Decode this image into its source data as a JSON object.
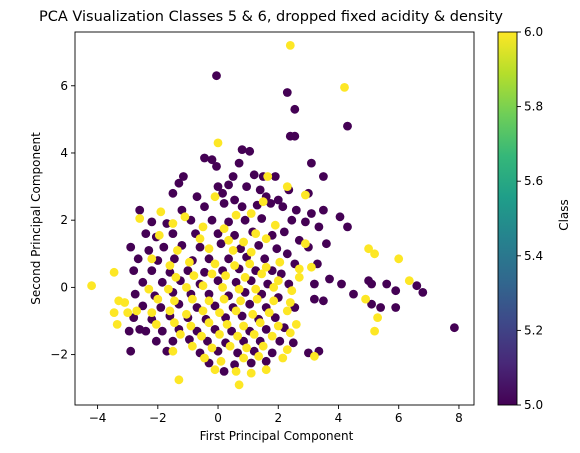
{
  "chart_data": {
    "type": "scatter",
    "title": "PCA Visualization Classes 5 & 6, dropped fixed acidity & density",
    "xlabel": "First Principal Component",
    "ylabel": "Second Principal Component",
    "xlim": [
      -4.75,
      8.5
    ],
    "ylim": [
      -3.5,
      7.6
    ],
    "xticks": [
      -4,
      -2,
      0,
      2,
      4,
      6,
      8
    ],
    "yticks": [
      -2,
      0,
      2,
      4,
      6
    ],
    "grid": false,
    "colorbar": {
      "label": "Class",
      "range": [
        5.0,
        6.0
      ],
      "ticks": [
        5.0,
        5.2,
        5.4,
        5.6,
        5.8,
        6.0
      ],
      "colormap": "viridis",
      "stops": [
        "#440154",
        "#482878",
        "#3e4989",
        "#31688e",
        "#26828e",
        "#1f9e89",
        "#35b779",
        "#6ece58",
        "#b5de2b",
        "#fde725"
      ]
    },
    "series": [
      {
        "class": 5,
        "color": "#440154",
        "points": [
          [
            -0.05,
            6.3
          ],
          [
            2.3,
            5.8
          ],
          [
            2.55,
            5.3
          ],
          [
            4.3,
            4.8
          ],
          [
            2.4,
            4.5
          ],
          [
            2.55,
            4.5
          ],
          [
            3.1,
            3.7
          ],
          [
            0.8,
            4.1
          ],
          [
            1.05,
            4.05
          ],
          [
            -0.45,
            3.85
          ],
          [
            -0.2,
            3.8
          ],
          [
            -0.05,
            3.6
          ],
          [
            0.7,
            3.7
          ],
          [
            0.5,
            3.3
          ],
          [
            1.2,
            3.35
          ],
          [
            1.5,
            3.3
          ],
          [
            1.9,
            3.3
          ],
          [
            3.5,
            3.3
          ],
          [
            -1.15,
            3.3
          ],
          [
            -1.3,
            3.1
          ],
          [
            0.0,
            3.0
          ],
          [
            0.35,
            3.05
          ],
          [
            0.95,
            3.0
          ],
          [
            1.4,
            2.9
          ],
          [
            2.35,
            2.9
          ],
          [
            3.0,
            2.8
          ],
          [
            -1.5,
            2.8
          ],
          [
            -0.7,
            2.7
          ],
          [
            0.15,
            2.8
          ],
          [
            0.55,
            2.6
          ],
          [
            1.6,
            2.7
          ],
          [
            2.0,
            2.6
          ],
          [
            -2.6,
            2.3
          ],
          [
            -1.2,
            2.3
          ],
          [
            -0.45,
            2.4
          ],
          [
            0.2,
            2.5
          ],
          [
            0.8,
            2.4
          ],
          [
            1.3,
            2.45
          ],
          [
            1.75,
            2.5
          ],
          [
            2.15,
            2.4
          ],
          [
            2.6,
            2.3
          ],
          [
            3.5,
            2.3
          ],
          [
            3.1,
            2.2
          ],
          [
            4.05,
            2.1
          ],
          [
            -2.2,
            1.95
          ],
          [
            -1.7,
            1.9
          ],
          [
            -0.9,
            2.0
          ],
          [
            -0.2,
            2.0
          ],
          [
            0.35,
            1.95
          ],
          [
            0.9,
            2.0
          ],
          [
            1.45,
            2.05
          ],
          [
            2.45,
            2.0
          ],
          [
            2.9,
            1.95
          ],
          [
            3.35,
            1.8
          ],
          [
            4.3,
            1.8
          ],
          [
            -2.4,
            1.6
          ],
          [
            -2.05,
            1.5
          ],
          [
            -1.5,
            1.6
          ],
          [
            -0.75,
            1.6
          ],
          [
            0.0,
            1.6
          ],
          [
            0.55,
            1.55
          ],
          [
            1.15,
            1.65
          ],
          [
            1.8,
            1.55
          ],
          [
            2.2,
            1.65
          ],
          [
            2.7,
            1.4
          ],
          [
            3.0,
            1.2
          ],
          [
            3.6,
            1.3
          ],
          [
            -2.9,
            1.2
          ],
          [
            -2.3,
            1.1
          ],
          [
            -1.8,
            1.2
          ],
          [
            -1.2,
            1.25
          ],
          [
            -0.6,
            1.2
          ],
          [
            0.1,
            1.3
          ],
          [
            0.75,
            1.15
          ],
          [
            1.35,
            1.25
          ],
          [
            1.95,
            1.15
          ],
          [
            2.3,
            1.0
          ],
          [
            -2.65,
            0.85
          ],
          [
            -2.0,
            0.8
          ],
          [
            -1.45,
            0.85
          ],
          [
            -0.85,
            0.8
          ],
          [
            -0.3,
            0.85
          ],
          [
            0.35,
            0.85
          ],
          [
            0.95,
            0.9
          ],
          [
            1.55,
            0.85
          ],
          [
            2.55,
            0.7
          ],
          [
            3.3,
            0.7
          ],
          [
            -2.8,
            0.5
          ],
          [
            -2.2,
            0.5
          ],
          [
            -1.6,
            0.45
          ],
          [
            -1.0,
            0.5
          ],
          [
            -0.45,
            0.45
          ],
          [
            0.15,
            0.5
          ],
          [
            0.7,
            0.55
          ],
          [
            1.25,
            0.5
          ],
          [
            1.8,
            0.5
          ],
          [
            2.1,
            0.4
          ],
          [
            -2.5,
            0.15
          ],
          [
            -1.85,
            0.15
          ],
          [
            -1.25,
            0.2
          ],
          [
            -0.6,
            0.1
          ],
          [
            0.0,
            0.2
          ],
          [
            0.6,
            0.15
          ],
          [
            1.1,
            0.2
          ],
          [
            1.65,
            0.1
          ],
          [
            2.35,
            0.1
          ],
          [
            3.2,
            0.1
          ],
          [
            3.7,
            0.25
          ],
          [
            4.1,
            0.1
          ],
          [
            5.0,
            0.2
          ],
          [
            5.1,
            0.1
          ],
          [
            5.6,
            0.1
          ],
          [
            5.9,
            -0.1
          ],
          [
            6.6,
            0.05
          ],
          [
            6.8,
            -0.15
          ],
          [
            4.5,
            -0.2
          ],
          [
            -2.75,
            -0.2
          ],
          [
            -2.1,
            -0.25
          ],
          [
            -1.5,
            -0.15
          ],
          [
            -0.9,
            -0.2
          ],
          [
            -0.3,
            -0.2
          ],
          [
            0.35,
            -0.25
          ],
          [
            0.9,
            -0.15
          ],
          [
            1.45,
            -0.2
          ],
          [
            2.0,
            -0.3
          ],
          [
            3.2,
            -0.35
          ],
          [
            3.5,
            -0.4
          ],
          [
            5.1,
            -0.5
          ],
          [
            5.4,
            -0.6
          ],
          [
            -2.5,
            -0.55
          ],
          [
            -1.9,
            -0.6
          ],
          [
            -1.3,
            -0.5
          ],
          [
            -0.7,
            -0.6
          ],
          [
            -0.1,
            -0.55
          ],
          [
            0.5,
            -0.6
          ],
          [
            1.05,
            -0.5
          ],
          [
            1.6,
            -0.6
          ],
          [
            2.55,
            -0.6
          ],
          [
            5.9,
            -0.6
          ],
          [
            -2.8,
            -0.9
          ],
          [
            -2.2,
            -0.95
          ],
          [
            -1.6,
            -0.85
          ],
          [
            -1.0,
            -0.9
          ],
          [
            -0.4,
            -0.95
          ],
          [
            0.25,
            -0.9
          ],
          [
            0.8,
            -0.85
          ],
          [
            1.35,
            -0.95
          ],
          [
            1.9,
            -0.9
          ],
          [
            -2.95,
            -1.3
          ],
          [
            -2.6,
            -1.25
          ],
          [
            -2.4,
            -1.3
          ],
          [
            -1.85,
            -1.3
          ],
          [
            -1.3,
            -1.25
          ],
          [
            -0.7,
            -1.3
          ],
          [
            -0.1,
            -1.25
          ],
          [
            0.45,
            -1.3
          ],
          [
            1.05,
            -1.3
          ],
          [
            1.6,
            -1.25
          ],
          [
            2.2,
            -1.2
          ],
          [
            -2.05,
            -1.6
          ],
          [
            -1.5,
            -1.6
          ],
          [
            -0.95,
            -1.55
          ],
          [
            -0.35,
            -1.6
          ],
          [
            0.25,
            -1.65
          ],
          [
            0.85,
            -1.6
          ],
          [
            1.4,
            -1.6
          ],
          [
            2.05,
            -1.6
          ],
          [
            2.5,
            -1.65
          ],
          [
            -2.9,
            -1.9
          ],
          [
            -1.7,
            -1.9
          ],
          [
            -0.6,
            -1.95
          ],
          [
            0.0,
            -1.9
          ],
          [
            0.65,
            -1.95
          ],
          [
            1.2,
            -1.9
          ],
          [
            1.8,
            -1.95
          ],
          [
            3.0,
            -1.95
          ],
          [
            3.35,
            -1.9
          ],
          [
            -0.3,
            -2.25
          ],
          [
            0.55,
            -2.3
          ],
          [
            1.1,
            -2.25
          ],
          [
            1.6,
            -2.2
          ],
          [
            0.2,
            -2.5
          ],
          [
            7.85,
            -1.2
          ]
        ]
      },
      {
        "class": 6,
        "color": "#fde725",
        "points": [
          [
            2.4,
            7.2
          ],
          [
            4.2,
            5.95
          ],
          [
            0.0,
            4.3
          ],
          [
            1.65,
            3.3
          ],
          [
            2.3,
            3.0
          ],
          [
            2.9,
            2.75
          ],
          [
            -0.1,
            2.7
          ],
          [
            1.5,
            2.55
          ],
          [
            -1.9,
            2.25
          ],
          [
            -1.1,
            2.1
          ],
          [
            0.6,
            2.15
          ],
          [
            1.1,
            2.2
          ],
          [
            -2.6,
            2.05
          ],
          [
            -1.5,
            1.9
          ],
          [
            -0.5,
            1.8
          ],
          [
            0.2,
            1.75
          ],
          [
            1.25,
            1.6
          ],
          [
            1.9,
            1.85
          ],
          [
            -1.95,
            1.55
          ],
          [
            -0.6,
            1.45
          ],
          [
            0.35,
            1.4
          ],
          [
            0.85,
            1.35
          ],
          [
            1.6,
            1.45
          ],
          [
            -1.35,
            1.1
          ],
          [
            -0.3,
            1.15
          ],
          [
            0.5,
            1.1
          ],
          [
            1.1,
            1.05
          ],
          [
            2.9,
            1.3
          ],
          [
            5.0,
            1.15
          ],
          [
            5.2,
            1.0
          ],
          [
            -2.2,
            0.85
          ],
          [
            -1.6,
            0.65
          ],
          [
            -0.95,
            0.75
          ],
          [
            -0.1,
            0.7
          ],
          [
            0.55,
            0.65
          ],
          [
            1.05,
            0.7
          ],
          [
            1.6,
            0.6
          ],
          [
            2.05,
            0.75
          ],
          [
            2.7,
            0.55
          ],
          [
            3.1,
            0.6
          ],
          [
            6.0,
            0.85
          ],
          [
            -3.45,
            0.45
          ],
          [
            -1.4,
            0.3
          ],
          [
            -0.8,
            0.35
          ],
          [
            -0.2,
            0.4
          ],
          [
            0.25,
            0.35
          ],
          [
            0.9,
            0.3
          ],
          [
            1.45,
            0.4
          ],
          [
            2.0,
            0.2
          ],
          [
            2.7,
            0.3
          ],
          [
            6.35,
            0.2
          ],
          [
            -4.2,
            0.05
          ],
          [
            -2.3,
            -0.05
          ],
          [
            -1.65,
            -0.05
          ],
          [
            -1.05,
            0.0
          ],
          [
            -0.5,
            0.05
          ],
          [
            0.15,
            0.0
          ],
          [
            0.7,
            -0.05
          ],
          [
            1.25,
            -0.05
          ],
          [
            1.85,
            0.0
          ],
          [
            2.45,
            -0.1
          ],
          [
            -3.3,
            -0.4
          ],
          [
            -3.1,
            -0.45
          ],
          [
            -2.0,
            -0.35
          ],
          [
            -1.45,
            -0.4
          ],
          [
            -0.85,
            -0.35
          ],
          [
            -0.3,
            -0.4
          ],
          [
            0.2,
            -0.35
          ],
          [
            0.75,
            -0.4
          ],
          [
            1.3,
            -0.35
          ],
          [
            1.85,
            -0.4
          ],
          [
            2.4,
            -0.45
          ],
          [
            4.9,
            -0.35
          ],
          [
            -3.45,
            -0.75
          ],
          [
            -3.0,
            -0.75
          ],
          [
            -2.7,
            -0.7
          ],
          [
            -2.2,
            -0.75
          ],
          [
            -1.6,
            -0.7
          ],
          [
            -1.05,
            -0.8
          ],
          [
            -0.5,
            -0.7
          ],
          [
            0.05,
            -0.75
          ],
          [
            0.6,
            -0.7
          ],
          [
            1.15,
            -0.8
          ],
          [
            1.7,
            -0.75
          ],
          [
            2.3,
            -0.7
          ],
          [
            5.3,
            -0.9
          ],
          [
            -3.35,
            -1.1
          ],
          [
            -2.05,
            -1.1
          ],
          [
            -1.45,
            -1.05
          ],
          [
            -0.9,
            -1.15
          ],
          [
            -0.3,
            -1.05
          ],
          [
            0.3,
            -1.1
          ],
          [
            0.85,
            -1.15
          ],
          [
            1.4,
            -1.05
          ],
          [
            2.0,
            -1.15
          ],
          [
            2.6,
            -1.1
          ],
          [
            5.2,
            -1.3
          ],
          [
            -1.25,
            -1.4
          ],
          [
            -0.55,
            -1.45
          ],
          [
            0.05,
            -1.4
          ],
          [
            0.65,
            -1.45
          ],
          [
            1.2,
            -1.4
          ],
          [
            1.8,
            -1.45
          ],
          [
            2.4,
            -1.35
          ],
          [
            -1.5,
            -1.9
          ],
          [
            -0.85,
            -1.75
          ],
          [
            -0.2,
            -1.8
          ],
          [
            0.4,
            -1.75
          ],
          [
            0.95,
            -1.8
          ],
          [
            1.5,
            -1.75
          ],
          [
            2.3,
            -1.85
          ],
          [
            3.2,
            -2.05
          ],
          [
            -0.45,
            -2.1
          ],
          [
            0.1,
            -2.2
          ],
          [
            0.85,
            -2.1
          ],
          [
            1.35,
            -2.05
          ],
          [
            2.15,
            -2.1
          ],
          [
            -0.1,
            -2.45
          ],
          [
            0.6,
            -2.5
          ],
          [
            1.1,
            -2.55
          ],
          [
            1.6,
            -2.45
          ],
          [
            -1.3,
            -2.75
          ],
          [
            0.7,
            -2.9
          ]
        ]
      }
    ]
  }
}
